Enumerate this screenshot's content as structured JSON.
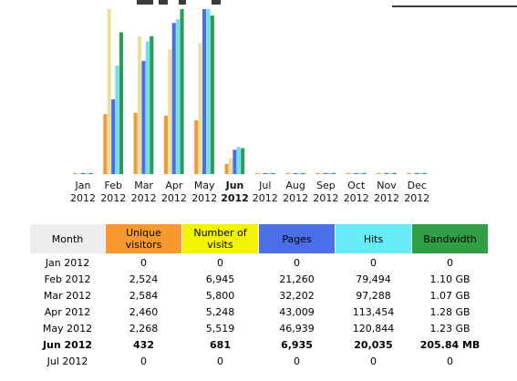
{
  "colors": {
    "unique": "#f09a3e",
    "visits": "#e8e09c",
    "pages": "#4a6fe0",
    "hits": "#6ee0e8",
    "bandwidth": "#2e9a58",
    "header_month": "#ececec",
    "header_unique": "#f7992e",
    "header_visits": "#f4f400",
    "header_pages": "#4a6fe6",
    "header_hits": "#66ecf6",
    "header_bw": "#2f9e44"
  },
  "chart_data": {
    "type": "bar",
    "categories": [
      "Jan 2012",
      "Feb 2012",
      "Mar 2012",
      "Apr 2012",
      "May 2012",
      "Jun 2012",
      "Jul 2012",
      "Aug 2012",
      "Sep 2012",
      "Oct 2012",
      "Nov 2012",
      "Dec 2012"
    ],
    "month_labels": [
      {
        "m": "Jan",
        "y": "2012"
      },
      {
        "m": "Feb",
        "y": "2012"
      },
      {
        "m": "Mar",
        "y": "2012"
      },
      {
        "m": "Apr",
        "y": "2012"
      },
      {
        "m": "May",
        "y": "2012"
      },
      {
        "m": "Jun",
        "y": "2012"
      },
      {
        "m": "Jul",
        "y": "2012"
      },
      {
        "m": "Aug",
        "y": "2012"
      },
      {
        "m": "Sep",
        "y": "2012"
      },
      {
        "m": "Oct",
        "y": "2012"
      },
      {
        "m": "Nov",
        "y": "2012"
      },
      {
        "m": "Dec",
        "y": "2012"
      }
    ],
    "highlight_index": 5,
    "series": [
      {
        "key": "unique",
        "name": "Unique visitors",
        "values": [
          0,
          2524,
          2584,
          2460,
          2268,
          432,
          0,
          0,
          0,
          0,
          0,
          0
        ]
      },
      {
        "key": "visits",
        "name": "Number of visits",
        "values": [
          0,
          6945,
          5800,
          5248,
          5519,
          681,
          0,
          0,
          0,
          0,
          0,
          0
        ]
      },
      {
        "key": "pages",
        "name": "Pages",
        "values": [
          0,
          21260,
          32202,
          43009,
          46939,
          6935,
          0,
          0,
          0,
          0,
          0,
          0
        ]
      },
      {
        "key": "hits",
        "name": "Hits",
        "values": [
          0,
          79494,
          97288,
          113454,
          120844,
          20035,
          0,
          0,
          0,
          0,
          0,
          0
        ]
      },
      {
        "key": "bandwidth",
        "name": "Bandwidth",
        "values_gb": [
          0,
          1.1,
          1.07,
          1.28,
          1.23,
          0.201,
          0,
          0,
          0,
          0,
          0,
          0
        ]
      }
    ]
  },
  "table": {
    "headers": {
      "month": "Month",
      "unique": "Unique visitors",
      "visits": "Number of visits",
      "pages": "Pages",
      "hits": "Hits",
      "bandwidth": "Bandwidth"
    },
    "rows": [
      {
        "month": "Jan 2012",
        "unique": "0",
        "visits": "0",
        "pages": "0",
        "hits": "0",
        "bandwidth": "0"
      },
      {
        "month": "Feb 2012",
        "unique": "2,524",
        "visits": "6,945",
        "pages": "21,260",
        "hits": "79,494",
        "bandwidth": "1.10 GB"
      },
      {
        "month": "Mar 2012",
        "unique": "2,584",
        "visits": "5,800",
        "pages": "32,202",
        "hits": "97,288",
        "bandwidth": "1.07 GB"
      },
      {
        "month": "Apr 2012",
        "unique": "2,460",
        "visits": "5,248",
        "pages": "43,009",
        "hits": "113,454",
        "bandwidth": "1.28 GB"
      },
      {
        "month": "May 2012",
        "unique": "2,268",
        "visits": "5,519",
        "pages": "46,939",
        "hits": "120,844",
        "bandwidth": "1.23 GB"
      },
      {
        "month": "Jun 2012",
        "unique": "432",
        "visits": "681",
        "pages": "6,935",
        "hits": "20,035",
        "bandwidth": "205.84 MB"
      },
      {
        "month": "Jul 2012",
        "unique": "0",
        "visits": "0",
        "pages": "0",
        "hits": "0",
        "bandwidth": "0"
      }
    ]
  }
}
